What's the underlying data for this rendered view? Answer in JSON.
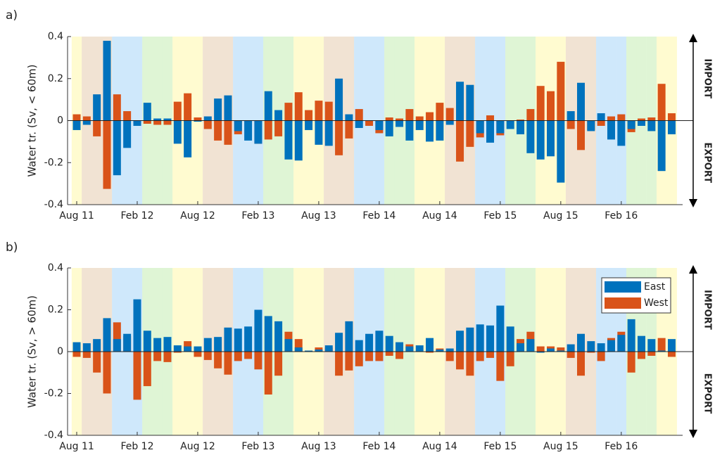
{
  "chart_data": [
    {
      "type": "bar",
      "panel_label": "a)",
      "ylabel": "Water tr. (Sv, < 60m)",
      "import_label": "IMPORT",
      "export_label": "EXPORT",
      "categories": [
        "Aug 11",
        null,
        null,
        null,
        null,
        null,
        "Feb 12",
        null,
        null,
        null,
        null,
        null,
        "Aug 12",
        null,
        null,
        null,
        null,
        null,
        "Feb 13",
        null,
        null,
        null,
        null,
        null,
        "Aug 13",
        null,
        null,
        null,
        null,
        null,
        "Feb 14",
        null,
        null,
        null,
        null,
        null,
        "Aug 14",
        null,
        null,
        null,
        null,
        null,
        "Feb 15",
        null,
        null,
        null,
        null,
        null,
        "Aug 15",
        null,
        null,
        null,
        null,
        null,
        "Feb 16",
        null,
        null,
        null,
        null,
        null
      ],
      "series": [
        {
          "color": "#d95319",
          "values": [
            0.03,
            0.02,
            -0.075,
            -0.325,
            0.125,
            0.045,
            -0.015,
            -0.015,
            -0.02,
            -0.02,
            0.09,
            0.13,
            0.015,
            -0.04,
            -0.095,
            -0.115,
            -0.065,
            0,
            -0.11,
            -0.09,
            -0.075,
            0.085,
            0.135,
            0.05,
            0.095,
            0.09,
            -0.165,
            -0.085,
            0.055,
            -0.025,
            -0.06,
            0.015,
            0.01,
            0.055,
            0.02,
            0.04,
            0.085,
            0.06,
            -0.195,
            -0.125,
            -0.08,
            0.025,
            -0.07,
            0,
            0.005,
            0.055,
            0.165,
            0.14,
            0.28,
            -0.04,
            -0.14,
            -0.045,
            -0.025,
            0.02,
            0.03,
            -0.055,
            0.01,
            0.015,
            0.175,
            0.035
          ]
        },
        {
          "color": "#0072bd",
          "values": [
            -0.045,
            -0.02,
            0.125,
            0.38,
            -0.26,
            -0.13,
            -0.025,
            0.085,
            0.01,
            0.01,
            -0.11,
            -0.175,
            -0.005,
            0.02,
            0.105,
            0.12,
            -0.05,
            -0.095,
            -0.11,
            0.14,
            0.05,
            -0.185,
            -0.19,
            -0.045,
            -0.115,
            -0.12,
            0.2,
            0.03,
            -0.035,
            0,
            -0.045,
            -0.075,
            -0.03,
            -0.095,
            -0.045,
            -0.1,
            -0.095,
            -0.02,
            0.185,
            0.17,
            -0.06,
            -0.105,
            -0.06,
            -0.04,
            -0.065,
            -0.155,
            -0.185,
            -0.17,
            -0.295,
            0.045,
            0.18,
            -0.05,
            0.035,
            -0.09,
            -0.12,
            -0.04,
            -0.025,
            -0.05,
            -0.24,
            -0.065
          ]
        }
      ],
      "ylim": [
        -0.4,
        0.4
      ],
      "yticks": [
        -0.4,
        -0.2,
        0,
        0.2,
        0.4
      ]
    },
    {
      "type": "bar",
      "panel_label": "b)",
      "ylabel": "Water tr. (Sv, > 60m)",
      "import_label": "IMPORT",
      "export_label": "EXPORT",
      "categories": [
        "Aug 11",
        null,
        null,
        null,
        null,
        null,
        "Feb 12",
        null,
        null,
        null,
        null,
        null,
        "Aug 12",
        null,
        null,
        null,
        null,
        null,
        "Feb 13",
        null,
        null,
        null,
        null,
        null,
        "Aug 13",
        null,
        null,
        null,
        null,
        null,
        "Feb 14",
        null,
        null,
        null,
        null,
        null,
        "Aug 14",
        null,
        null,
        null,
        null,
        null,
        "Feb 15",
        null,
        null,
        null,
        null,
        null,
        "Aug 15",
        null,
        null,
        null,
        null,
        null,
        "Feb 16",
        null,
        null,
        null,
        null,
        null
      ],
      "series": [
        {
          "name": "West",
          "color": "#d95319",
          "values": [
            -0.025,
            -0.03,
            -0.1,
            -0.2,
            0.14,
            0.075,
            -0.23,
            -0.165,
            -0.045,
            -0.05,
            -0.005,
            0.05,
            -0.025,
            -0.04,
            -0.08,
            -0.11,
            -0.045,
            -0.035,
            -0.085,
            -0.205,
            -0.115,
            0.095,
            0.06,
            0.005,
            0.02,
            0.02,
            -0.115,
            -0.09,
            -0.07,
            -0.045,
            -0.045,
            -0.02,
            -0.035,
            0.035,
            0,
            -0.005,
            0.015,
            -0.045,
            -0.085,
            -0.115,
            -0.045,
            -0.03,
            -0.14,
            -0.07,
            0.06,
            0.095,
            0.025,
            0.025,
            0.02,
            -0.03,
            -0.115,
            -0.005,
            -0.045,
            0.065,
            0.095,
            -0.1,
            -0.035,
            -0.02,
            0.065,
            -0.025
          ]
        },
        {
          "name": "East",
          "color": "#0072bd",
          "values": [
            0.045,
            0.04,
            0.06,
            0.16,
            0.06,
            0.085,
            0.25,
            0.1,
            0.065,
            0.07,
            0.03,
            0.025,
            0.025,
            0.065,
            0.07,
            0.115,
            0.11,
            0.12,
            0.2,
            0.17,
            0.145,
            0.06,
            0.02,
            0.005,
            0.01,
            0.03,
            0.09,
            0.145,
            0.055,
            0.085,
            0.1,
            0.075,
            0.045,
            0.025,
            0.03,
            0.065,
            0.01,
            0.015,
            0.1,
            0.115,
            0.13,
            0.125,
            0.22,
            0.12,
            0.04,
            0.06,
            -0.005,
            0.015,
            0.005,
            0.035,
            0.085,
            0.05,
            0.04,
            0.055,
            0.08,
            0.155,
            0.075,
            0.06,
            0.005,
            0.06
          ]
        }
      ],
      "ylim": [
        -0.4,
        0.4
      ],
      "yticks": [
        -0.4,
        -0.2,
        0,
        0.2,
        0.4
      ],
      "legend": "upper right"
    }
  ]
}
